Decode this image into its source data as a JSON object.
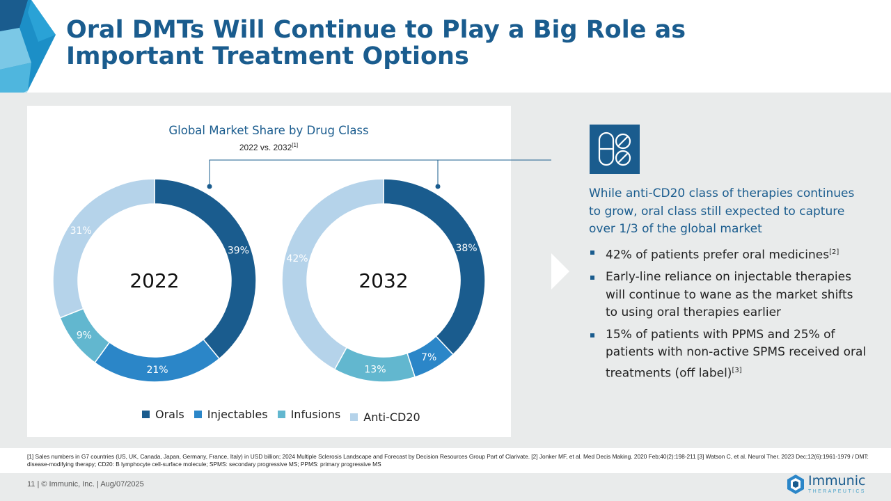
{
  "title": "Oral DMTs Will Continue to Play a Big Role as Important Treatment Options",
  "colors": {
    "orals": "#1a5c8e",
    "injectables": "#2b86c8",
    "infusions": "#62b7cf",
    "anti_cd20": "#b5d3ea",
    "title": "#1a5c8e",
    "panel": "#e9ebeb"
  },
  "chart_data": {
    "type": "pie",
    "title": "Global Market Share by Drug Class",
    "subtitle": "2022 vs. 2032",
    "subtitle_ref": "[1]",
    "categories": [
      "Orals",
      "Injectables",
      "Infusions",
      "Anti-CD20"
    ],
    "charts": [
      {
        "label": "2022",
        "values": [
          39,
          21,
          9,
          31
        ],
        "value_labels": [
          "39%",
          "21%",
          "9%",
          "31%"
        ]
      },
      {
        "label": "2032",
        "values": [
          38,
          7,
          13,
          42
        ],
        "value_labels": [
          "38%",
          "7%",
          "13%",
          "42%"
        ]
      }
    ],
    "legend": [
      "Orals",
      "Injectables",
      "Infusions",
      "Anti-CD20"
    ],
    "legend_position": "bottom"
  },
  "icon": "pills-icon",
  "panel": {
    "lead": "While anti-CD20 class of therapies continues to grow, oral class still expected to capture over 1/3 of the global market",
    "bullets": [
      {
        "text": "42% of patients prefer oral medicines",
        "ref": "[2]"
      },
      {
        "text": "Early-line reliance on injectable therapies will continue to wane as the market shifts to using oral therapies earlier",
        "ref": ""
      },
      {
        "text": "15% of patients with PPMS and 25% of patients with non-active SPMS received oral treatments (off label)",
        "ref": "[3]"
      }
    ]
  },
  "footnote": "[1] Sales numbers in G7 countries (US, UK, Canada, Japan, Germany, France, Italy) in USD billion; 2024 Multiple Sclerosis Landscape and Forecast by Decision Resources Group Part of Clarivate. [2] Jonker MF, et al. Med Decis Making. 2020 Feb;40(2):198-211 [3] Watson C, et al. Neurol Ther. 2023 Dec;12(6):1961-1979 / DMT: disease-modifying therapy; CD20: B lymphocyte cell-surface molecule; SPMS: secondary progressive MS; PPMS: primary progressive MS",
  "footer": {
    "text": "11  |  © Immunic, Inc.  | Aug/07/2025",
    "logo_name": "Immunic",
    "logo_tag": "THERAPEUTICS"
  }
}
